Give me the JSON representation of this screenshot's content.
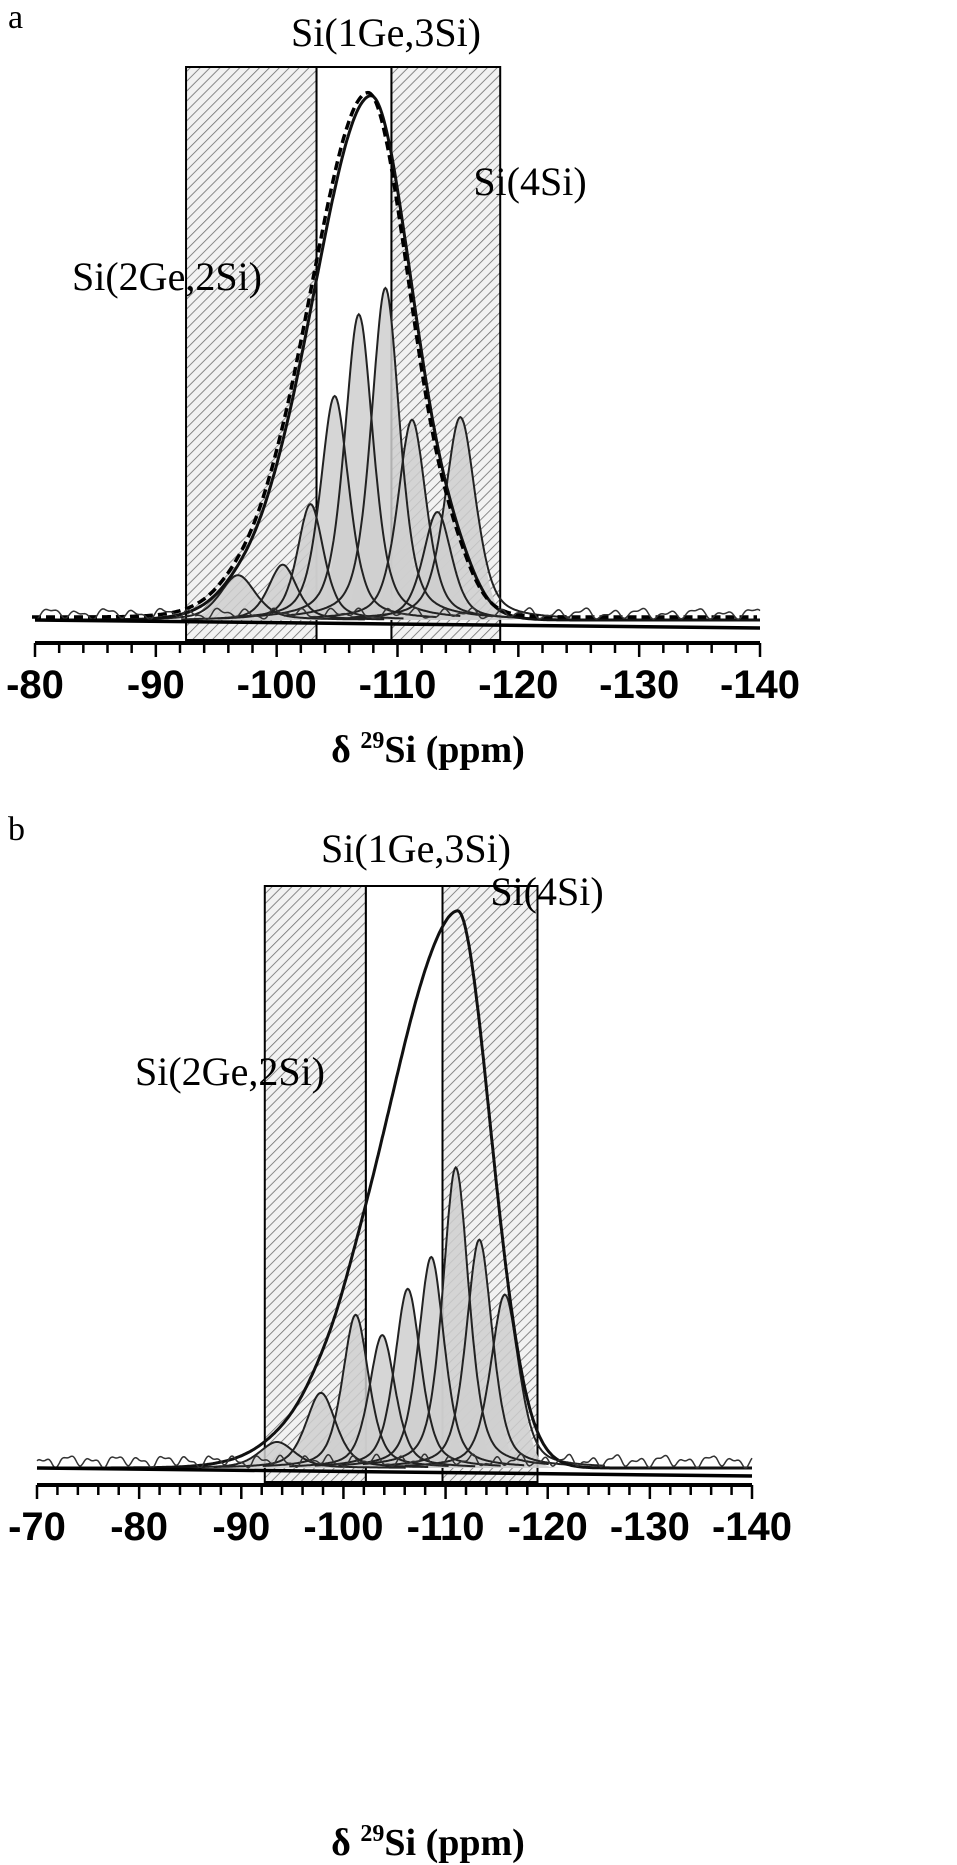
{
  "chart_data": [
    {
      "type": "line",
      "panel_label": "a",
      "xlabel": "δ ²⁹Si (ppm)",
      "xlabel_parts": {
        "prefix": "δ ",
        "sup": "29",
        "suffix": "Si (ppm)"
      },
      "x_ticks": [
        "-80",
        "-90",
        "-100",
        "-110",
        "-120",
        "-130",
        "-140"
      ],
      "x_tick_values": [
        -80,
        -90,
        -100,
        -110,
        -120,
        -130,
        -140
      ],
      "xlim": [
        -80,
        -140
      ],
      "x_reversed": true,
      "ylim": [
        0,
        1
      ],
      "y_axis_shown": false,
      "grid": false,
      "regions": [
        {
          "label": "Si(2Ge,2Si)",
          "from": -92.5,
          "to": -103.3,
          "hatched": true
        },
        {
          "label": "Si(1Ge,3Si)",
          "from": -103.3,
          "to": -109.5,
          "hatched": false
        },
        {
          "label": "Si(4Si)",
          "from": -109.5,
          "to": -118.5,
          "hatched": true
        }
      ],
      "components": [
        {
          "center": -96.8,
          "height": 0.085,
          "width": 1.5
        },
        {
          "center": -100.5,
          "height": 0.105,
          "width": 1.2
        },
        {
          "center": -102.8,
          "height": 0.22,
          "width": 1.1
        },
        {
          "center": -104.8,
          "height": 0.425,
          "width": 1.2
        },
        {
          "center": -106.8,
          "height": 0.58,
          "width": 1.2
        },
        {
          "center": -109.0,
          "height": 0.63,
          "width": 1.2
        },
        {
          "center": -111.2,
          "height": 0.38,
          "width": 1.2
        },
        {
          "center": -113.3,
          "height": 0.205,
          "width": 1.2
        },
        {
          "center": -115.2,
          "height": 0.385,
          "width": 1.3
        }
      ],
      "envelope_peak": {
        "x": -107.8,
        "y": 1.0
      },
      "series": [
        {
          "style": "dashed envelope (fit sum)"
        },
        {
          "style": "solid thick (experimental spectrum)"
        },
        {
          "style": "thin noisy (residual)"
        }
      ]
    },
    {
      "type": "line",
      "panel_label": "b",
      "xlabel": "δ ²⁹Si (ppm)",
      "xlabel_parts": {
        "prefix": "δ ",
        "sup": "29",
        "suffix": "Si (ppm)"
      },
      "x_ticks": [
        "-70",
        "-80",
        "-90",
        "-100",
        "-110",
        "-120",
        "-130",
        "-140"
      ],
      "x_tick_values": [
        -70,
        -80,
        -90,
        -100,
        -110,
        -120,
        -130,
        -140
      ],
      "xlim": [
        -70,
        -140
      ],
      "x_reversed": true,
      "ylim": [
        0,
        1
      ],
      "y_axis_shown": false,
      "grid": false,
      "regions": [
        {
          "label": "Si(2Ge,2Si)",
          "from": -92.3,
          "to": -102.2,
          "hatched": true
        },
        {
          "label": "Si(1Ge,3Si)",
          "from": -102.2,
          "to": -109.7,
          "hatched": false
        },
        {
          "label": "Si(4Si)",
          "from": -109.7,
          "to": -119.0,
          "hatched": true
        }
      ],
      "components": [
        {
          "center": -93.5,
          "height": 0.045,
          "width": 1.8
        },
        {
          "center": -97.8,
          "height": 0.13,
          "width": 1.5
        },
        {
          "center": -101.2,
          "height": 0.265,
          "width": 1.3
        },
        {
          "center": -103.8,
          "height": 0.23,
          "width": 1.3
        },
        {
          "center": -106.3,
          "height": 0.31,
          "width": 1.3
        },
        {
          "center": -108.6,
          "height": 0.365,
          "width": 1.3
        },
        {
          "center": -111.0,
          "height": 0.52,
          "width": 1.3
        },
        {
          "center": -113.3,
          "height": 0.395,
          "width": 1.3
        },
        {
          "center": -115.8,
          "height": 0.3,
          "width": 1.4
        }
      ],
      "envelope_peak": {
        "x": -111.2,
        "y": 1.0
      },
      "series": [
        {
          "style": "solid thick (experimental spectrum / envelope)"
        },
        {
          "style": "thin noisy (residual)"
        }
      ]
    }
  ]
}
